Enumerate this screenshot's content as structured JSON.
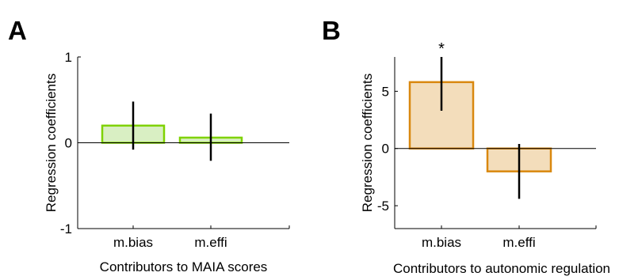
{
  "panels": [
    {
      "letter": "A",
      "chart_data": {
        "type": "bar",
        "categories": [
          "m.bias",
          "m.effi"
        ],
        "values": [
          0.2,
          0.06
        ],
        "error_low": [
          -0.08,
          -0.21
        ],
        "error_high": [
          0.48,
          0.34
        ],
        "title": "",
        "xlabel": "Contributors to MAIA scores",
        "ylabel": "Regression coefficients",
        "ylim": [
          -1,
          1
        ],
        "yticks": [
          -1,
          0,
          1
        ],
        "ytick_labels": [
          "-1",
          "0",
          "1"
        ],
        "grid": false,
        "annotations": [],
        "bar_fill": "#d9efc3",
        "bar_edge": "#7fd200",
        "zero_line": true
      }
    },
    {
      "letter": "B",
      "chart_data": {
        "type": "bar",
        "categories": [
          "m.bias",
          "m.effi"
        ],
        "values": [
          5.8,
          -2.0
        ],
        "error_low": [
          3.3,
          -4.4
        ],
        "error_high": [
          8.0,
          0.4
        ],
        "title": "",
        "xlabel": "Contributors to autonomic regulation",
        "ylabel": "Regression coefficients",
        "ylim": [
          -7,
          8
        ],
        "yticks": [
          -5,
          0,
          5
        ],
        "ytick_labels": [
          "-5",
          "0",
          "5"
        ],
        "grid": false,
        "annotations": [
          {
            "category": "m.bias",
            "text": "*"
          }
        ],
        "bar_fill": "#f3ddbb",
        "bar_edge": "#d9880f",
        "zero_line": true
      }
    }
  ]
}
